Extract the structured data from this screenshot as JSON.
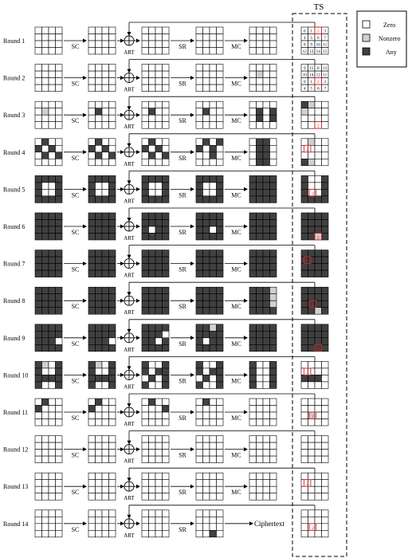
{
  "ts_label": "TS",
  "legend": {
    "zero": "Zero",
    "nonzero": "Nonzero",
    "any": "Any"
  },
  "op_labels": {
    "sc": "SC",
    "art": "ART",
    "sr": "SR",
    "mc": "MC"
  },
  "final_output": "Ciphertext",
  "ts_index_grid_round1": [
    [
      "0",
      "1",
      "2",
      "3"
    ],
    [
      "4",
      "5",
      "6",
      "7"
    ],
    [
      "8",
      "9",
      "10",
      "11"
    ],
    [
      "12",
      "13",
      "14",
      "15"
    ]
  ],
  "ts_index_grid_round2": [
    [
      "9",
      "15",
      "8",
      "13"
    ],
    [
      "10",
      "14",
      "12",
      "11"
    ],
    [
      "0",
      "1",
      "2",
      "3"
    ],
    [
      "4",
      "5",
      "6",
      "7"
    ]
  ],
  "ts_highlight_label": "2",
  "colors": {
    "zero": "#ffffff",
    "nonzero": "#d0d0d0",
    "any": "#404040",
    "highlight": "#e02020",
    "line": "#000000"
  },
  "rounds": [
    {
      "label": "Round 1",
      "states": [
        "ZZZZ ZZZZ ZZZZ ZZZZ",
        "ZZZZ ZZZZ ZZZZ ZZZZ",
        "ZZZZ ZZZZ ZZZZ ZZZZ",
        "ZZZZ ZZZZ ZZZZ ZZZZ",
        "ZZZZ ZZZZ ZZZZ ZZZZ"
      ]
    },
    {
      "label": "Round 2",
      "states": [
        "ZZZZ ZZZZ ZZZZ ZZZZ",
        "ZZZZ ZZZZ ZZZZ ZZZZ",
        "ZZZZ ZZZZ ZZZZ ZZZZ",
        "ZZZZ ZZZZ ZZZZ ZZZZ",
        "ZZZZ ZNZZ ZZZZ ZZZZ"
      ]
    },
    {
      "label": "Round 3",
      "states": [
        "ZZZZ ZNZZ ZZZZ ZZZZ",
        "ZZZZ ZAZZ ZZZZ ZZZZ",
        "ZZZZ ZAZZ ZZZZ ZZZZ",
        "ZZZZ ZAZZ ZZZZ ZZZZ",
        "ZZZZ ZAZA ZAZA ZZZZ"
      ]
    },
    {
      "label": "Round 4",
      "states": [
        "ZAZZ AZAZ ZAZA ZZZZ",
        "ZAZZ AZAZ ZAZA ZZZZ",
        "ZAZZ AZAZ ZAZA ZZZZ",
        "ZAZA AZAZ ZZAZ ZZZZ",
        "ZAAZ ZAAZ ZAAZ ZAAZ"
      ]
    },
    {
      "label": "Round 5",
      "states": [
        "AAAA AZZA AZZA AAAA",
        "AAAA AZZA AZZA AAAA",
        "AAAA AZZA AZZA AAAA",
        "AAAA AZZA AZZA AAAA",
        "AAAA AAAA AAAA AAAA"
      ]
    },
    {
      "label": "Round 6",
      "states": [
        "AAAA AAAA AAAA AAAA",
        "AAAA AAAA AAAA AAAA",
        "AAAA AAAA AZAA AAAA",
        "AAAA AAAA AAZA AAAA",
        "AAAA AAAA AAAA AAAA"
      ]
    },
    {
      "label": "Round 7",
      "states": [
        "AAAA AAAA AAAA AAAA",
        "AAAA AAAA AAAA AAAA",
        "AAAA AAAA AAAA AAAA",
        "AAAA AAAA AAAA AAAA",
        "AAAA AAAA AAAA AAAA"
      ]
    },
    {
      "label": "Round 8",
      "states": [
        "AAAA AAAA AAAA AAAA",
        "AAAA AAAA AAAA AAAA",
        "AAAA AAAA AAAA AAAA",
        "AAAA AAAA AAAA AAAA",
        "AAAN AAAN AAAN AAAA"
      ]
    },
    {
      "label": "Round 9",
      "states": [
        "AAAA AAAA AAAZ AAAA",
        "AAAA AAAA AAAZ AAAA",
        "AAAA AAAZ AAZA AAAA",
        "AANA AAAA AZAA AAAA",
        "AAAA AAAA AAAA AAAA"
      ]
    },
    {
      "label": "Round 10",
      "states": [
        "ANZA AZZA AAAA AZZA",
        "ANZA AZZA AAAA AZZA",
        "AZZA AZAA ZAZA AZZA",
        "AZZA AZAA ZAZA AZZA",
        "AZZA AZZA AZZA AZZA"
      ]
    },
    {
      "label": "Round 11",
      "states": [
        "ZAZZ AZZZ ZZZZ ZZZZ",
        "ZAZZ AZZZ ZZZZ ZZZZ",
        "ZAZZ ZZZA ZZZZ ZZZZ",
        "ZAZZ ZZZZ ZZZZ ZZZZ",
        "ZZZZ ZZZZ ZZZZ ZZZZ"
      ]
    },
    {
      "label": "Round 12",
      "states": [
        "ZZZZ ZZZZ ZZZZ ZZZZ",
        "ZZZZ ZZZZ ZZZZ ZZZZ",
        "ZZZZ ZZZZ ZZZZ ZZZZ",
        "ZZZZ ZZZZ ZZZZ ZZZZ",
        "ZZZZ ZZZZ ZZZZ ZZZZ"
      ]
    },
    {
      "label": "Round 13",
      "states": [
        "ZZZZ ZZZZ ZZZZ ZZZZ",
        "ZZZZ ZZZZ ZZZZ ZZZZ",
        "ZZZZ ZZZZ ZZZZ ZZZZ",
        "ZZZZ ZZZZ ZZZZ ZZZZ",
        "ZZZZ ZZZZ ZZZZ ZZZZ"
      ]
    },
    {
      "label": "Round 14",
      "states": [
        "ZZZZ ZZZZ ZZZZ ZZZZ",
        "ZZZZ ZZZZ ZZZZ ZZZZ",
        "ZZZZ ZZZZ ZZZZ ZZZZ",
        "ZZZZ ZZZZ ZZZZ ZZAZ"
      ]
    }
  ],
  "ts_blocks": [
    "index1",
    "index2",
    "ANZZ NZZZ ZZZZ ZZZZ",
    "ZNZZ ZZZZ ZZZZ ANZZ",
    "AZZA AZZA AZZA AAAA",
    "AAAA AAAA AAAA AANA",
    "AAAA AAAA AAAA AAAA",
    "AAAA AAAA AAAA AANA",
    "AAAA AAAA AAAA AAAA",
    "ZZZZ ZZZZ AAAZ ZZZZ",
    "ZZZZ ZZZZ ZNZZ ZZZZ",
    "ZZZZ ZZZZ ZZZZ ZZZZ",
    "ZZZZ ZZZZ ZZZZ ZZZZ",
    "ZZZZ ZZZZ ZZZZ ZZZZ"
  ],
  "ts_red_marks": [
    0,
    0,
    1,
    1,
    1,
    1,
    1,
    1,
    1,
    1,
    1,
    0,
    1,
    1
  ]
}
